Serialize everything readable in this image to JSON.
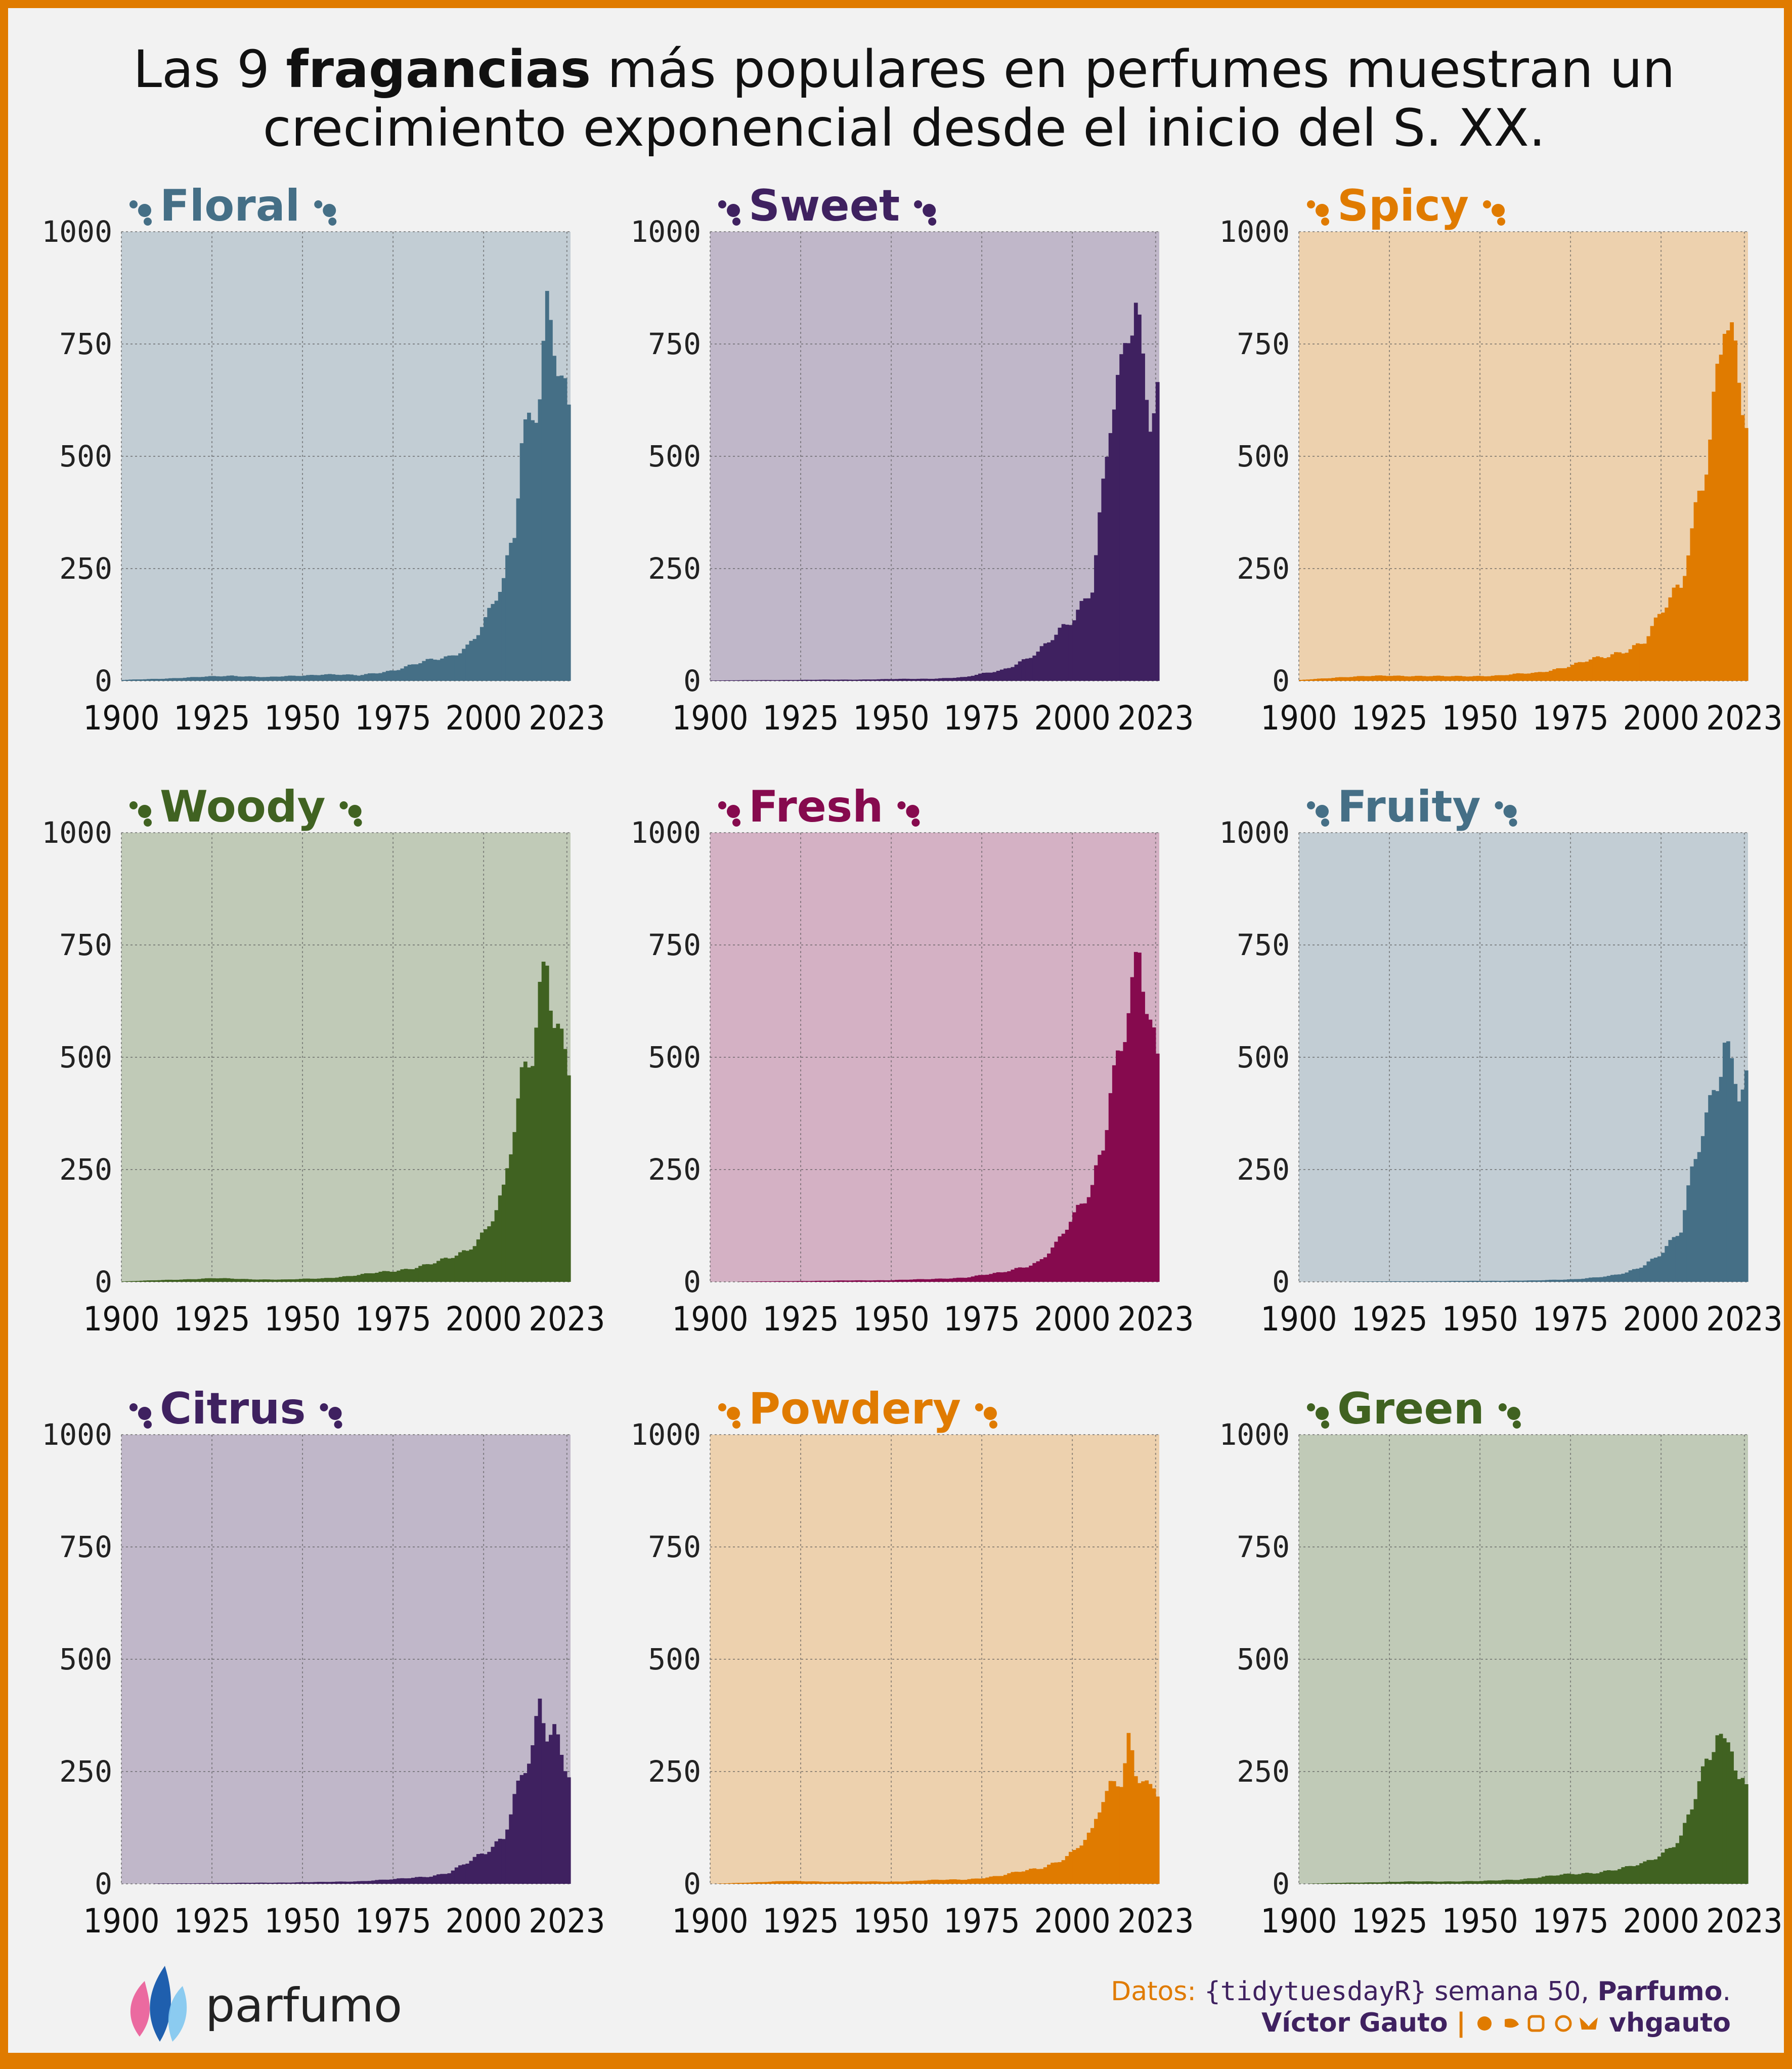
{
  "title": {
    "part1": "Las 9 ",
    "bold": "fragancias",
    "part2": " más populares en perfumes muestran un",
    "line2": "crecimiento exponencial desde el inicio del S. XX."
  },
  "colors": {
    "Floral": "#456f86",
    "Sweet": "#3f2160",
    "Spicy": "#e07b00",
    "Woody": "#406221",
    "Fresh": "#860a4e",
    "Fruity": "#456f86",
    "Citrus": "#3f2160",
    "Powdery": "#e07b00",
    "Green": "#406221"
  },
  "footer": {
    "logo": "parfumo",
    "datos_label": "Datos:",
    "datos_pkg": "{tidytuesdayR}",
    "datos_week": " semana 50,",
    "datos_src": "Parfumo",
    "datos_end": ".",
    "author": "Víctor Gauto",
    "sep": "|",
    "handle": "vhgauto"
  },
  "chart_data": [
    {
      "type": "bar",
      "title": "Floral",
      "x_range": [
        1900,
        2023
      ],
      "ylim": [
        0,
        1000
      ],
      "x_ticks": [
        "1900",
        "1925",
        "1950",
        "1975",
        "2000",
        "2023"
      ],
      "y_ticks": [
        "0",
        "250",
        "500",
        "750",
        "1000"
      ],
      "anchors": [
        [
          1900,
          2
        ],
        [
          1920,
          8
        ],
        [
          1930,
          12
        ],
        [
          1940,
          8
        ],
        [
          1955,
          15
        ],
        [
          1965,
          12
        ],
        [
          1975,
          25
        ],
        [
          1985,
          45
        ],
        [
          1990,
          55
        ],
        [
          1995,
          80
        ],
        [
          2000,
          130
        ],
        [
          2005,
          210
        ],
        [
          2008,
          330
        ],
        [
          2010,
          550
        ],
        [
          2012,
          600
        ],
        [
          2015,
          700
        ],
        [
          2017,
          840
        ],
        [
          2019,
          760
        ],
        [
          2021,
          650
        ],
        [
          2023,
          550
        ]
      ]
    },
    {
      "type": "bar",
      "title": "Sweet",
      "x_range": [
        1900,
        2023
      ],
      "ylim": [
        0,
        1000
      ],
      "x_ticks": [
        "1900",
        "1925",
        "1950",
        "1975",
        "2000",
        "2023"
      ],
      "y_ticks": [
        "0",
        "250",
        "500",
        "750",
        "1000"
      ],
      "anchors": [
        [
          1900,
          1
        ],
        [
          1940,
          3
        ],
        [
          1960,
          5
        ],
        [
          1970,
          8
        ],
        [
          1980,
          25
        ],
        [
          1990,
          60
        ],
        [
          1995,
          100
        ],
        [
          2000,
          150
        ],
        [
          2005,
          220
        ],
        [
          2008,
          420
        ],
        [
          2010,
          560
        ],
        [
          2013,
          640
        ],
        [
          2015,
          760
        ],
        [
          2017,
          830
        ],
        [
          2019,
          720
        ],
        [
          2021,
          640
        ],
        [
          2023,
          680
        ]
      ]
    },
    {
      "type": "bar",
      "title": "Spicy",
      "x_range": [
        1900,
        2023
      ],
      "ylim": [
        0,
        1000
      ],
      "x_ticks": [
        "1900",
        "1925",
        "1950",
        "1975",
        "2000",
        "2023"
      ],
      "y_ticks": [
        "0",
        "250",
        "500",
        "750",
        "1000"
      ],
      "anchors": [
        [
          1900,
          2
        ],
        [
          1910,
          8
        ],
        [
          1925,
          12
        ],
        [
          1940,
          10
        ],
        [
          1955,
          12
        ],
        [
          1965,
          18
        ],
        [
          1975,
          35
        ],
        [
          1985,
          55
        ],
        [
          1995,
          90
        ],
        [
          2000,
          150
        ],
        [
          2005,
          210
        ],
        [
          2008,
          340
        ],
        [
          2010,
          450
        ],
        [
          2013,
          560
        ],
        [
          2015,
          690
        ],
        [
          2017,
          810
        ],
        [
          2019,
          720
        ],
        [
          2021,
          620
        ],
        [
          2023,
          560
        ]
      ]
    },
    {
      "type": "bar",
      "title": "Woody",
      "x_range": [
        1900,
        2023
      ],
      "ylim": [
        0,
        1000
      ],
      "x_ticks": [
        "1900",
        "1925",
        "1950",
        "1975",
        "2000",
        "2023"
      ],
      "y_ticks": [
        "0",
        "250",
        "500",
        "750",
        "1000"
      ],
      "anchors": [
        [
          1900,
          1
        ],
        [
          1925,
          8
        ],
        [
          1935,
          6
        ],
        [
          1945,
          5
        ],
        [
          1955,
          8
        ],
        [
          1965,
          15
        ],
        [
          1975,
          25
        ],
        [
          1985,
          40
        ],
        [
          1990,
          50
        ],
        [
          1995,
          70
        ],
        [
          2000,
          120
        ],
        [
          2005,
          200
        ],
        [
          2008,
          330
        ],
        [
          2010,
          420
        ],
        [
          2013,
          500
        ],
        [
          2015,
          640
        ],
        [
          2017,
          745
        ],
        [
          2019,
          640
        ],
        [
          2021,
          560
        ],
        [
          2023,
          500
        ]
      ]
    },
    {
      "type": "bar",
      "title": "Fresh",
      "x_range": [
        1900,
        2023
      ],
      "ylim": [
        0,
        1000
      ],
      "x_ticks": [
        "1900",
        "1925",
        "1950",
        "1975",
        "2000",
        "2023"
      ],
      "y_ticks": [
        "0",
        "250",
        "500",
        "750",
        "1000"
      ],
      "anchors": [
        [
          1900,
          0
        ],
        [
          1925,
          2
        ],
        [
          1950,
          4
        ],
        [
          1960,
          6
        ],
        [
          1970,
          10
        ],
        [
          1980,
          20
        ],
        [
          1990,
          45
        ],
        [
          1995,
          80
        ],
        [
          2000,
          140
        ],
        [
          2005,
          220
        ],
        [
          2008,
          330
        ],
        [
          2010,
          450
        ],
        [
          2013,
          520
        ],
        [
          2015,
          600
        ],
        [
          2018,
          670
        ],
        [
          2020,
          600
        ],
        [
          2023,
          480
        ]
      ]
    },
    {
      "type": "bar",
      "title": "Fruity",
      "x_range": [
        1900,
        2023
      ],
      "ylim": [
        0,
        1000
      ],
      "x_ticks": [
        "1900",
        "1925",
        "1950",
        "1975",
        "2000",
        "2023"
      ],
      "y_ticks": [
        "0",
        "250",
        "500",
        "750",
        "1000"
      ],
      "anchors": [
        [
          1900,
          0
        ],
        [
          1945,
          2
        ],
        [
          1965,
          3
        ],
        [
          1975,
          6
        ],
        [
          1985,
          12
        ],
        [
          1990,
          20
        ],
        [
          1995,
          40
        ],
        [
          2000,
          70
        ],
        [
          2005,
          110
        ],
        [
          2008,
          230
        ],
        [
          2010,
          300
        ],
        [
          2013,
          400
        ],
        [
          2015,
          480
        ],
        [
          2017,
          570
        ],
        [
          2019,
          500
        ],
        [
          2021,
          440
        ],
        [
          2023,
          440
        ]
      ]
    },
    {
      "type": "bar",
      "title": "Citrus",
      "x_range": [
        1900,
        2023
      ],
      "ylim": [
        0,
        1000
      ],
      "x_ticks": [
        "1900",
        "1925",
        "1950",
        "1975",
        "2000",
        "2023"
      ],
      "y_ticks": [
        "0",
        "250",
        "500",
        "750",
        "1000"
      ],
      "anchors": [
        [
          1900,
          0
        ],
        [
          1945,
          3
        ],
        [
          1955,
          4
        ],
        [
          1965,
          6
        ],
        [
          1975,
          10
        ],
        [
          1985,
          18
        ],
        [
          1990,
          25
        ],
        [
          1995,
          45
        ],
        [
          2000,
          70
        ],
        [
          2005,
          110
        ],
        [
          2008,
          200
        ],
        [
          2010,
          240
        ],
        [
          2013,
          290
        ],
        [
          2015,
          370
        ],
        [
          2017,
          320
        ],
        [
          2019,
          330
        ],
        [
          2021,
          290
        ],
        [
          2023,
          265
        ]
      ]
    },
    {
      "type": "bar",
      "title": "Powdery",
      "x_range": [
        1900,
        2023
      ],
      "ylim": [
        0,
        1000
      ],
      "x_ticks": [
        "1900",
        "1925",
        "1950",
        "1975",
        "2000",
        "2023"
      ],
      "y_ticks": [
        "0",
        "250",
        "500",
        "750",
        "1000"
      ],
      "anchors": [
        [
          1900,
          0
        ],
        [
          1920,
          6
        ],
        [
          1935,
          5
        ],
        [
          1950,
          5
        ],
        [
          1960,
          8
        ],
        [
          1970,
          10
        ],
        [
          1980,
          18
        ],
        [
          1990,
          35
        ],
        [
          1995,
          50
        ],
        [
          2000,
          70
        ],
        [
          2005,
          110
        ],
        [
          2008,
          190
        ],
        [
          2010,
          220
        ],
        [
          2013,
          250
        ],
        [
          2015,
          340
        ],
        [
          2017,
          250
        ],
        [
          2019,
          240
        ],
        [
          2021,
          200
        ],
        [
          2023,
          190
        ]
      ]
    },
    {
      "type": "bar",
      "title": "Green",
      "x_range": [
        1900,
        2023
      ],
      "ylim": [
        0,
        1000
      ],
      "x_ticks": [
        "1900",
        "1925",
        "1950",
        "1975",
        "2000",
        "2023"
      ],
      "y_ticks": [
        "0",
        "250",
        "500",
        "750",
        "1000"
      ],
      "anchors": [
        [
          1900,
          0
        ],
        [
          1910,
          2
        ],
        [
          1930,
          5
        ],
        [
          1950,
          6
        ],
        [
          1960,
          10
        ],
        [
          1970,
          18
        ],
        [
          1980,
          25
        ],
        [
          1990,
          35
        ],
        [
          1995,
          45
        ],
        [
          2000,
          70
        ],
        [
          2005,
          110
        ],
        [
          2008,
          170
        ],
        [
          2010,
          220
        ],
        [
          2013,
          260
        ],
        [
          2015,
          330
        ],
        [
          2017,
          300
        ],
        [
          2019,
          320
        ],
        [
          2021,
          250
        ],
        [
          2023,
          225
        ]
      ]
    }
  ]
}
